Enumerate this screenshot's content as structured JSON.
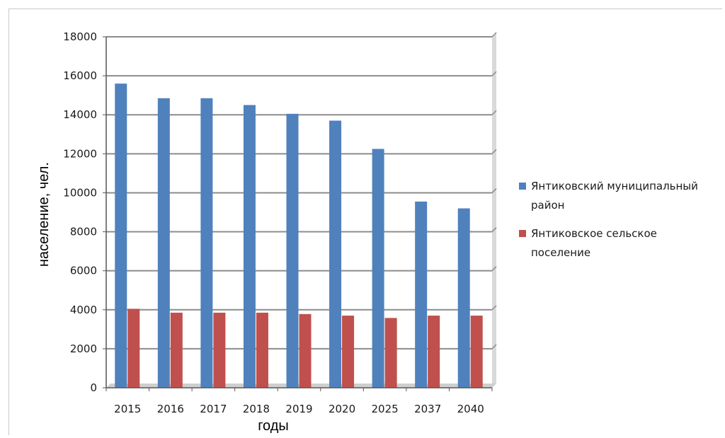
{
  "chart_data": {
    "type": "bar",
    "categories": [
      "2015",
      "2016",
      "2017",
      "2018",
      "2019",
      "2020",
      "2025",
      "2037",
      "2040"
    ],
    "series": [
      {
        "name": "Янтиковский муниципальный район",
        "name_lines": [
          "Янтиковский муниципальный",
          "район"
        ],
        "color": "#4f81bd",
        "values": [
          15600,
          14850,
          14850,
          14500,
          14050,
          13700,
          12250,
          9550,
          9200
        ]
      },
      {
        "name": "Янтиковское сельское поселение",
        "name_lines": [
          "Янтиковское сельское",
          "поселение"
        ],
        "color": "#c0504d",
        "values": [
          4050,
          3850,
          3850,
          3850,
          3780,
          3700,
          3580,
          3700,
          3700
        ]
      }
    ],
    "xlabel": "годы",
    "ylabel": "население, чел.",
    "ylim": [
      0,
      18000
    ],
    "yticks": [
      0,
      2000,
      4000,
      6000,
      8000,
      10000,
      12000,
      14000,
      16000,
      18000
    ],
    "grid": true,
    "legend_position": "right"
  }
}
